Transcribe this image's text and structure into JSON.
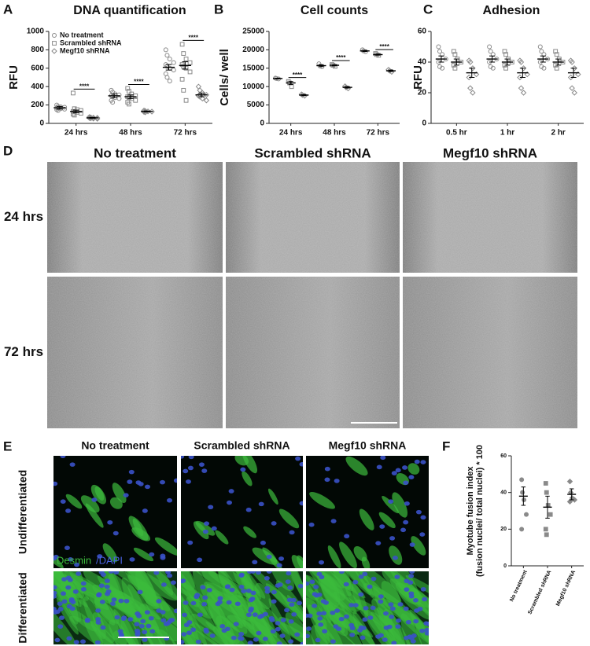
{
  "panel_labels": [
    "A",
    "B",
    "C",
    "D",
    "E",
    "F"
  ],
  "chart_data": [
    {
      "type": "dotplot",
      "title": "DNA quantification",
      "ylabel": [
        "RFU"
      ],
      "categories": [
        "24 hrs",
        "48 hrs",
        "72 hrs"
      ],
      "ylim": [
        0,
        1000
      ],
      "yticks": [
        0,
        200,
        400,
        600,
        800,
        1000
      ],
      "legend": "top-left",
      "annotations": [
        "****",
        "****",
        "****"
      ],
      "series": [
        {
          "name": "No treatment",
          "marker": "circle",
          "color": "#8a8a8a",
          "values": [
            170,
            300,
            610
          ],
          "errors": [
            15,
            20,
            30
          ],
          "points": [
            [
              200,
              185,
              180,
              175,
              170,
              165,
              160,
              155,
              150,
              140
            ],
            [
              360,
              340,
              320,
              310,
              300,
              290,
              280,
              270,
              250,
              230
            ],
            [
              800,
              740,
              700,
              660,
              640,
              620,
              600,
              580,
              540,
              500,
              460
            ]
          ]
        },
        {
          "name": "Scrambled shRNA",
          "marker": "square",
          "color": "#8a8a8a",
          "values": [
            130,
            290,
            630
          ],
          "errors": [
            15,
            20,
            40
          ],
          "points": [
            [
              330,
              160,
              150,
              140,
              130,
              125,
              120,
              110,
              100,
              90
            ],
            [
              380,
              350,
              320,
              300,
              290,
              280,
              270,
              250,
              230,
              210
            ],
            [
              860,
              760,
              700,
              660,
              640,
              620,
              600,
              560,
              480,
              360,
              250
            ]
          ]
        },
        {
          "name": "Megf10 shRNA",
          "marker": "diamond",
          "color": "#8a8a8a",
          "values": [
            60,
            130,
            310
          ],
          "errors": [
            5,
            5,
            20
          ],
          "points": [
            [
              70,
              65,
              62,
              60,
              58,
              55,
              52,
              50
            ],
            [
              140,
              135,
              130,
              128,
              125,
              120
            ],
            [
              400,
              360,
              330,
              310,
              300,
              290,
              270,
              250
            ]
          ]
        }
      ]
    },
    {
      "type": "dotplot",
      "title": "Cell counts",
      "ylabel": [
        "Cells/ well"
      ],
      "categories": [
        "24 hrs",
        "48 hrs",
        "72 hrs"
      ],
      "ylim": [
        0,
        25000
      ],
      "yticks": [
        0,
        5000,
        10000,
        15000,
        20000,
        25000
      ],
      "annotations": [
        "****",
        "****",
        "****"
      ],
      "series": [
        {
          "marker": "circle",
          "color": "#8a8a8a",
          "values": [
            12200,
            15700,
            19700
          ],
          "errors": [
            100,
            250,
            150
          ],
          "points": [
            [
              12300,
              12200,
              12100
            ],
            [
              16200,
              15600,
              15400
            ],
            [
              20000,
              19700,
              19500
            ]
          ]
        },
        {
          "marker": "square",
          "color": "#8a8a8a",
          "values": [
            11000,
            15800,
            18700
          ],
          "errors": [
            400,
            150,
            150
          ],
          "points": [
            [
              11400,
              11000,
              10000
            ],
            [
              16000,
              15800,
              15500
            ],
            [
              19000,
              18700,
              18500
            ]
          ]
        },
        {
          "marker": "diamond",
          "color": "#8a8a8a",
          "values": [
            7700,
            9800,
            14300
          ],
          "errors": [
            150,
            200,
            200
          ],
          "points": [
            [
              7900,
              7700,
              7500
            ],
            [
              10100,
              9800,
              9500
            ],
            [
              14600,
              14300,
              14000
            ]
          ]
        }
      ]
    },
    {
      "type": "dotplot",
      "title": "Adhesion",
      "ylabel": [
        "RFU"
      ],
      "categories": [
        "0.5 hr",
        "1 hr",
        "2 hr"
      ],
      "ylim": [
        0,
        60
      ],
      "yticks": [
        0,
        20,
        40,
        60
      ],
      "series": [
        {
          "marker": "circle",
          "color": "#8a8a8a",
          "values": [
            42,
            42,
            42
          ],
          "errors": [
            2,
            2,
            2
          ],
          "points": [
            [
              50,
              47,
              45,
              42,
              40,
              37,
              36
            ],
            [
              50,
              47,
              45,
              42,
              40,
              37,
              36
            ],
            [
              50,
              47,
              45,
              42,
              40,
              37,
              36
            ]
          ]
        },
        {
          "marker": "square",
          "color": "#8a8a8a",
          "values": [
            40,
            40,
            40
          ],
          "errors": [
            2,
            2,
            2
          ],
          "points": [
            [
              47,
              45,
              42,
              40,
              38,
              36
            ],
            [
              47,
              45,
              42,
              40,
              38,
              36
            ],
            [
              47,
              45,
              42,
              40,
              38,
              36
            ]
          ]
        },
        {
          "marker": "diamond",
          "color": "#8a8a8a",
          "values": [
            33,
            33,
            33
          ],
          "errors": [
            3,
            3,
            3
          ],
          "points": [
            [
              41,
              40,
              36,
              32,
              30,
              23,
              20
            ],
            [
              41,
              40,
              36,
              32,
              30,
              23,
              20
            ],
            [
              41,
              40,
              36,
              32,
              30,
              23,
              20
            ]
          ]
        }
      ]
    },
    {
      "type": "dotplot",
      "ylabel": [
        "Myotube fusion index",
        "(fusion nuclei/ total nuclei) * 100"
      ],
      "categories": [
        "No treatment",
        "Scrambled shRNA",
        "Megf10 shRNA"
      ],
      "ylim": [
        0,
        60
      ],
      "yticks": [
        0,
        20,
        40,
        60
      ],
      "series": [
        {
          "markers": [
            "circle",
            "square",
            "diamond"
          ],
          "color": "#8a8a8a",
          "values": [
            38,
            32,
            39
          ],
          "errors": [
            5,
            6,
            3
          ],
          "points": [
            [
              47,
              40,
              36,
              28,
              20
            ],
            [
              45,
              40,
              33,
              28,
              20,
              17
            ],
            [
              46,
              40,
              37,
              36,
              35
            ]
          ]
        }
      ]
    }
  ],
  "wound_assay": {
    "columns": [
      "No treatment",
      "Scrambled shRNA",
      "Megf10 shRNA"
    ],
    "rows": [
      "24 hrs",
      "72 hrs"
    ]
  },
  "staining": {
    "columns": [
      "No treatment",
      "Scrambled shRNA",
      "Megf10 shRNA"
    ],
    "rows": [
      "Undifferentiated",
      "Differentiated"
    ],
    "stains": [
      "Desmin",
      "/DAPI"
    ]
  }
}
